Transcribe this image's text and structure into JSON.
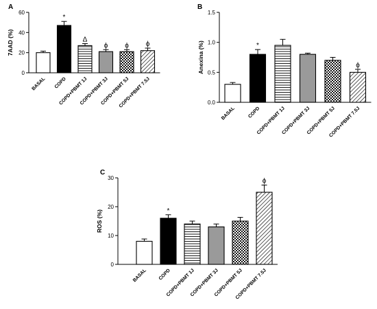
{
  "chart_data": [
    {
      "type": "bar",
      "panel_label": "A",
      "ylabel": "7AAD (%)",
      "ylim": [
        0,
        60
      ],
      "yticks": [
        0,
        20,
        40,
        60
      ],
      "categories": [
        "BASAL",
        "COPD",
        "COPD+PBMT 1J",
        "COPD+PBMT 3J",
        "COPD+PBMT 5J",
        "COPD+PBMT 7.5J"
      ],
      "values": [
        20,
        47,
        27,
        21,
        21,
        22
      ],
      "errors": [
        1.5,
        4,
        2,
        2,
        2,
        2.5
      ],
      "annotations": [
        "",
        "*",
        "Δ",
        "ϕ",
        "ϕ",
        "ϕ"
      ],
      "fills": [
        "white",
        "black",
        "hlines",
        "gray",
        "checker",
        "diag"
      ]
    },
    {
      "type": "bar",
      "panel_label": "B",
      "ylabel": "Anexina (%)",
      "ylim": [
        0,
        1.5
      ],
      "yticks": [
        0.0,
        0.5,
        1.0,
        1.5
      ],
      "categories": [
        "BASAL",
        "COPD",
        "COPD+PBMT 1J",
        "COPD+PBMT 3J",
        "COPD+PBMT 5J",
        "COPD+PBMT 7.5J"
      ],
      "values": [
        0.3,
        0.8,
        0.95,
        0.8,
        0.7,
        0.5
      ],
      "errors": [
        0.03,
        0.08,
        0.1,
        0.02,
        0.05,
        0.05
      ],
      "annotations": [
        "",
        "*",
        "",
        "",
        "",
        "ϕ"
      ],
      "fills": [
        "white",
        "black",
        "hlines",
        "gray",
        "checker",
        "diag"
      ]
    },
    {
      "type": "bar",
      "panel_label": "C",
      "ylabel": "ROS (%)",
      "ylim": [
        0,
        30
      ],
      "yticks": [
        0,
        10,
        20,
        30
      ],
      "categories": [
        "BASAL",
        "COPD",
        "COPD+PBMT 1J",
        "COPD+PBMT 3J",
        "COPD+PBMT 5J",
        "COPD+PBMT 7.5J"
      ],
      "values": [
        8,
        16,
        14,
        13,
        15,
        25
      ],
      "errors": [
        0.8,
        1.2,
        1,
        1,
        1.3,
        2.5
      ],
      "annotations": [
        "",
        "*",
        "",
        "",
        "",
        "ϕ"
      ],
      "fills": [
        "white",
        "black",
        "hlines",
        "gray",
        "checker",
        "diag"
      ]
    }
  ]
}
